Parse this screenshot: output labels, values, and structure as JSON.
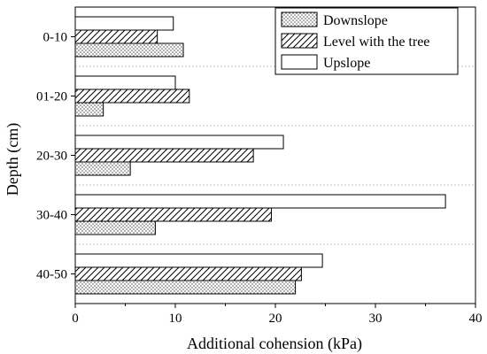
{
  "chart_data": {
    "type": "bar",
    "orientation": "horizontal",
    "title": "",
    "xlabel": "Additional cohension (kPa)",
    "ylabel": "Depth (cm)",
    "xlim": [
      0,
      40
    ],
    "xticks": [
      "0",
      "10",
      "20",
      "30",
      "40"
    ],
    "categories": [
      "0-10",
      "01-20",
      "20-30",
      "30-40",
      "40-50"
    ],
    "series": [
      {
        "name": "Downslope",
        "pattern": "dots",
        "values": [
          10.8,
          2.8,
          5.5,
          8.0,
          22.0
        ]
      },
      {
        "name": "Level with the tree",
        "pattern": "diagonal-hatch",
        "values": [
          8.2,
          11.4,
          17.8,
          19.6,
          22.6
        ]
      },
      {
        "name": "Upslope",
        "pattern": "none",
        "values": [
          9.8,
          10.0,
          20.8,
          37.0,
          24.7
        ]
      }
    ],
    "legend_position": "top-right",
    "grid": "dotted separators between categories",
    "colors": {
      "bar_fill": "#ffffff",
      "bar_stroke": "#000000",
      "separator": "#c8c8c8"
    }
  }
}
